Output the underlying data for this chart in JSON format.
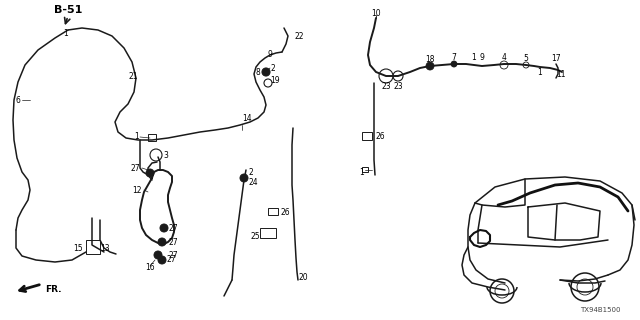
{
  "title": "B-51",
  "part_code": "TX94B1500",
  "bg_color": "#ffffff",
  "line_color": "#1a1a1a",
  "figsize": [
    6.4,
    3.2
  ],
  "dpi": 100
}
